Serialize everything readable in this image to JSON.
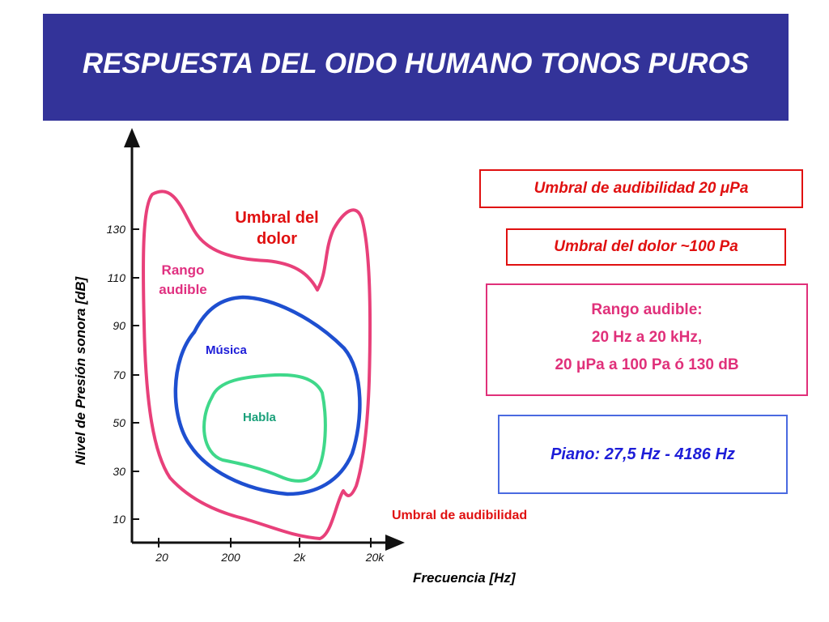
{
  "title": "RESPUESTA DEL OIDO HUMANO  TONOS PUROS",
  "axes": {
    "y_label": "Nivel de Presión sonora [dB]",
    "x_label": "Frecuencia [Hz]",
    "y_ticks": [
      "130",
      "110",
      "90",
      "70",
      "50",
      "30",
      "10"
    ],
    "x_ticks": [
      "20",
      "200",
      "2k",
      "20k"
    ]
  },
  "curve_labels": {
    "pain_line1": "Umbral del",
    "pain_line2": "dolor",
    "range_line1": "Rango",
    "range_line2": "audible",
    "music": "Música",
    "speech": "Habla",
    "hearing_threshold": "Umbral de audibilidad"
  },
  "info_boxes": {
    "hearing_threshold": "Umbral de audibilidad  20 μPa",
    "pain_threshold": "Umbral del dolor  ~100 Pa",
    "range_title": "Rango audible:",
    "range_freq": "20 Hz a 20 kHz,",
    "range_pressure": "20 μPa a 100 Pa ó 130 dB",
    "piano": "Piano: 27,5 Hz - 4186 Hz"
  },
  "colors": {
    "title_bg": "#333399",
    "audible_curve": "#e8407a",
    "music_curve": "#1e4fd0",
    "speech_curve": "#3fd88a",
    "threshold_text": "#e01010",
    "piano_border": "#4a6ae0"
  }
}
